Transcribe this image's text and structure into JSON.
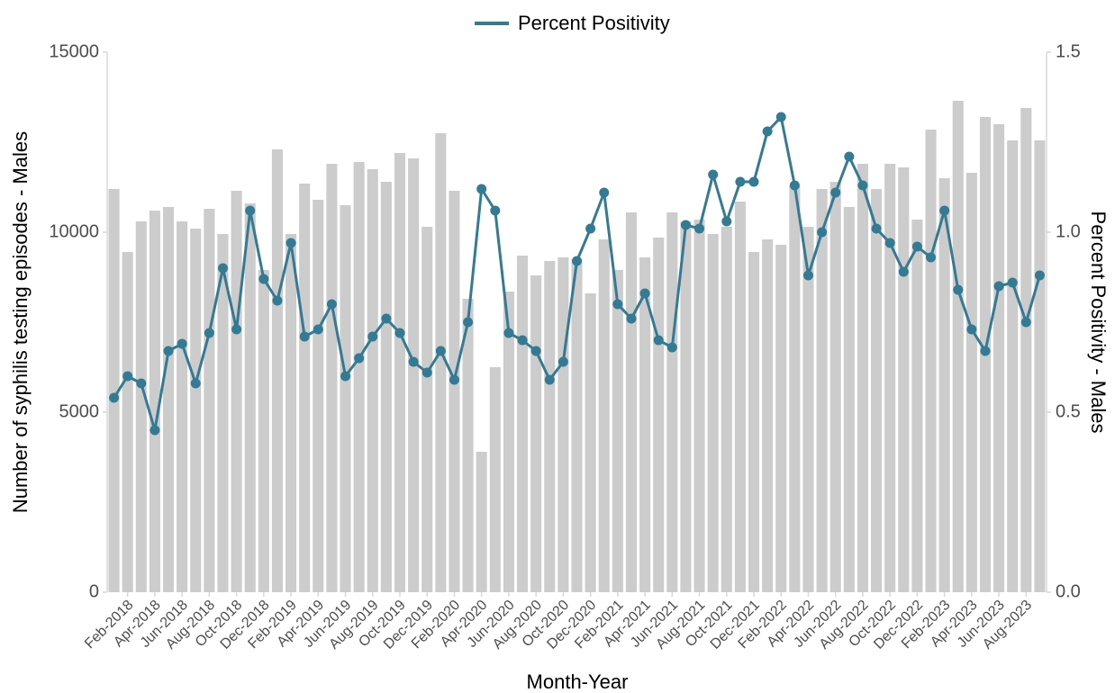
{
  "chart_data": {
    "type": "combo",
    "xlabel": "Month-Year",
    "ylabel": "Number of syphilis testing episodes - Males",
    "y2label": "Percent Positivity - Males",
    "legend": "top",
    "categories": [
      null,
      "Feb-2018",
      null,
      "Apr-2018",
      null,
      "Jun-2018",
      null,
      "Aug-2018",
      null,
      "Oct-2018",
      null,
      "Dec-2018",
      null,
      "Feb-2019",
      null,
      "Apr-2019",
      null,
      "Jun-2019",
      null,
      "Aug-2019",
      null,
      "Oct-2019",
      null,
      "Dec-2019",
      null,
      "Feb-2020",
      null,
      "Apr-2020",
      null,
      "Jun-2020",
      null,
      "Aug-2020",
      null,
      "Oct-2020",
      null,
      "Dec-2020",
      null,
      "Feb-2021",
      null,
      "Apr-2021",
      null,
      "Jun-2021",
      null,
      "Aug-2021",
      null,
      "Oct-2021",
      null,
      "Dec-2021",
      null,
      "Feb-2022",
      null,
      "Apr-2022",
      null,
      "Jun-2022",
      null,
      "Aug-2022",
      null,
      "Oct-2022",
      null,
      "Dec-2022",
      null,
      "Feb-2023",
      null,
      "Apr-2023",
      null,
      "Jun-2023",
      null,
      "Aug-2023",
      null
    ],
    "series": [
      {
        "type": "bar",
        "color": "#cccccc",
        "values": [
          11200,
          9450,
          10300,
          10600,
          10700,
          10300,
          10100,
          10650,
          9950,
          11150,
          10800,
          8950,
          12300,
          9950,
          11350,
          10900,
          11900,
          10750,
          11950,
          11750,
          11400,
          12200,
          12050,
          10150,
          12750,
          11150,
          8150,
          3900,
          6250,
          8350,
          9350,
          8800,
          9200,
          9300,
          9250,
          8300,
          9800,
          8950,
          10550,
          9300,
          9850,
          10550,
          10300,
          10350,
          9950,
          10150,
          10850,
          9450,
          9800,
          9650,
          11300,
          10150,
          11200,
          11400,
          10700,
          11900,
          11200,
          11900,
          11800,
          10350,
          12850,
          11500,
          13650,
          11650,
          13200,
          13000,
          12550,
          13450,
          12550
        ]
      },
      {
        "type": "line",
        "name": "Percent Positivity",
        "color": "#337a94",
        "axis": "y2",
        "values": [
          0.54,
          0.6,
          0.58,
          0.45,
          0.67,
          0.69,
          0.58,
          0.72,
          0.9,
          0.73,
          1.06,
          0.87,
          0.81,
          0.97,
          0.71,
          0.73,
          0.8,
          0.6,
          0.65,
          0.71,
          0.76,
          0.72,
          0.64,
          0.61,
          0.67,
          0.59,
          0.75,
          1.12,
          1.06,
          0.72,
          0.7,
          0.67,
          0.59,
          0.64,
          0.92,
          1.01,
          1.11,
          0.8,
          0.76,
          0.83,
          0.7,
          0.68,
          1.02,
          1.01,
          1.16,
          1.03,
          1.14,
          1.14,
          1.28,
          1.32,
          1.13,
          0.88,
          1.0,
          1.11,
          1.21,
          1.13,
          1.01,
          0.97,
          0.89,
          0.96,
          0.93,
          1.06,
          0.84,
          0.73,
          0.67,
          0.85,
          0.86,
          0.75,
          0.88
        ]
      }
    ],
    "ylim": [
      0,
      15000
    ],
    "yticks": [
      0,
      5000,
      10000,
      15000
    ],
    "y2lim": [
      0,
      1.5
    ],
    "y2ticks": [
      {
        "value": 0,
        "label": "0.0"
      },
      0.5,
      {
        "value": 1,
        "label": "1.0"
      },
      1.5
    ]
  }
}
